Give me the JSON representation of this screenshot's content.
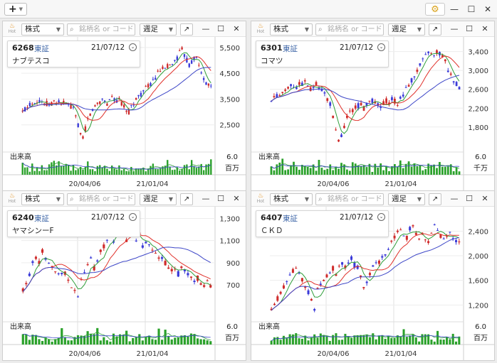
{
  "toolbar": {
    "add_label": "+",
    "window": {
      "minimize": "—",
      "maximize": "☐",
      "close": "✕"
    }
  },
  "colors": {
    "up": "#3a3ad8",
    "down": "#cf2b2b",
    "ma_short": "#2f9e3a",
    "ma_mid": "#e0312b",
    "ma_long": "#3d46c7",
    "volume": "#2aa12a"
  },
  "panels": [
    {
      "id": "p1",
      "type_select": "株式",
      "search_placeholder": "銘柄名 or コード",
      "period_select": "週足",
      "code": "6268",
      "market": "東証",
      "date": "21/07/12",
      "name": "ナブテスコ",
      "y_ticks": [
        "5,500",
        "4,500",
        "3,500",
        "2,500"
      ],
      "y_range": [
        1500,
        5800
      ],
      "x_ticks": [
        "20/04/06",
        "21/01/04"
      ],
      "volume_label": "出来高",
      "volume_value": "6.0",
      "volume_unit": "百万",
      "series": [
        3000,
        3100,
        3200,
        3300,
        3350,
        3420,
        3450,
        3400,
        3380,
        3350,
        3330,
        3300,
        3350,
        3400,
        3380,
        3360,
        3330,
        3350,
        3300,
        3280,
        3200,
        3100,
        2800,
        2500,
        2150,
        1950,
        2350,
        2700,
        2900,
        3100,
        3200,
        3350,
        3400,
        3500,
        3450,
        3300,
        3500,
        3600,
        3500,
        3400,
        3450,
        3350,
        3200,
        3100,
        3000,
        3200,
        3350,
        3500,
        3600,
        3700,
        3800,
        3900,
        4000,
        4100,
        4200,
        4300,
        4500,
        4600,
        4700,
        4600,
        4800,
        4900,
        4800,
        5000,
        5100,
        5300,
        5400,
        5200,
        5000,
        4800,
        4950,
        5100,
        5050,
        4800,
        4500,
        4300,
        4100,
        4000,
        4050
      ]
    },
    {
      "id": "p2",
      "type_select": "株式",
      "search_placeholder": "銘柄名 or コード",
      "period_select": "週足",
      "code": "6301",
      "market": "東証",
      "date": "21/07/12",
      "name": "コマツ",
      "y_ticks": [
        "3,400",
        "3,000",
        "2,600",
        "2,200",
        "1,800"
      ],
      "y_range": [
        1300,
        3650
      ],
      "x_ticks": [
        "20/04/06",
        "21/01/04"
      ],
      "volume_label": "出来高",
      "volume_value": "6.0",
      "volume_unit": "千万",
      "series": [
        2300,
        2400,
        2450,
        2500,
        2550,
        2600,
        2650,
        2700,
        2680,
        2650,
        2700,
        2720,
        2750,
        2680,
        2600,
        2650,
        2700,
        2650,
        2600,
        2500,
        2400,
        2300,
        2000,
        1700,
        1500,
        1600,
        1800,
        2000,
        2100,
        2150,
        2200,
        2250,
        2300,
        2200,
        2250,
        2300,
        2350,
        2300,
        2250,
        2200,
        2300,
        2350,
        2300,
        2400,
        2350,
        2300,
        2400,
        2500,
        2600,
        2700,
        2800,
        2900,
        3000,
        3100,
        3200,
        3300,
        3400,
        3350,
        3300,
        3400,
        3350,
        3300,
        3200,
        3000,
        2900,
        2800,
        2700,
        2600
      ]
    },
    {
      "id": "p3",
      "type_select": "株式",
      "search_placeholder": "銘柄名 or コード",
      "period_select": "週足",
      "code": "6240",
      "market": "東証",
      "date": "21/07/12",
      "name": "ヤマシンーF",
      "y_ticks": [
        "1,300",
        "1,100",
        "900",
        "700"
      ],
      "y_range": [
        380,
        1380
      ],
      "x_ticks": [
        "20/04/06",
        "21/01/04"
      ],
      "volume_label": "出来高",
      "volume_value": "6.0",
      "volume_unit": "百万",
      "series": [
        650,
        700,
        800,
        900,
        950,
        900,
        1000,
        950,
        880,
        850,
        800,
        780,
        820,
        800,
        750,
        700,
        650,
        600,
        750,
        800,
        900,
        950,
        850,
        900,
        1000,
        1050,
        1100,
        1150,
        1100,
        1200,
        1250,
        1150,
        1100,
        1200,
        1150,
        1100,
        1150,
        1050,
        1100,
        1050,
        1000,
        1000,
        950,
        950,
        900,
        850,
        820,
        850,
        800,
        850,
        820,
        800,
        780,
        750,
        760,
        720,
        700,
        720,
        700
      ]
    },
    {
      "id": "p4",
      "type_select": "株式",
      "search_placeholder": "銘柄名 or コード",
      "period_select": "週足",
      "code": "6407",
      "market": "東証",
      "date": "21/07/12",
      "name": "ＣＫＤ",
      "y_ticks": [
        "2,400",
        "2,000",
        "1,600",
        "1,200"
      ],
      "y_range": [
        950,
        2750
      ],
      "x_ticks": [
        "20/04/06",
        "21/01/04"
      ],
      "volume_label": "出来高",
      "volume_value": "6.0",
      "volume_unit": "百万",
      "series": [
        1100,
        1200,
        1300,
        1400,
        1500,
        1600,
        1700,
        1750,
        1800,
        1700,
        1600,
        1500,
        1400,
        1300,
        1150,
        1450,
        1550,
        1600,
        1650,
        1700,
        1800,
        1700,
        1800,
        1850,
        1800,
        1900,
        1950,
        1850,
        1800,
        1650,
        1500,
        1600,
        1700,
        1800,
        1850,
        1900,
        1950,
        2000,
        2100,
        2200,
        2300,
        2400,
        2450,
        2350,
        2300,
        2450,
        2500,
        2350,
        2300,
        2400,
        2300,
        2250,
        2400,
        2500,
        2450,
        2300,
        2250,
        2350,
        2400,
        2300,
        2250,
        2200
      ]
    }
  ]
}
